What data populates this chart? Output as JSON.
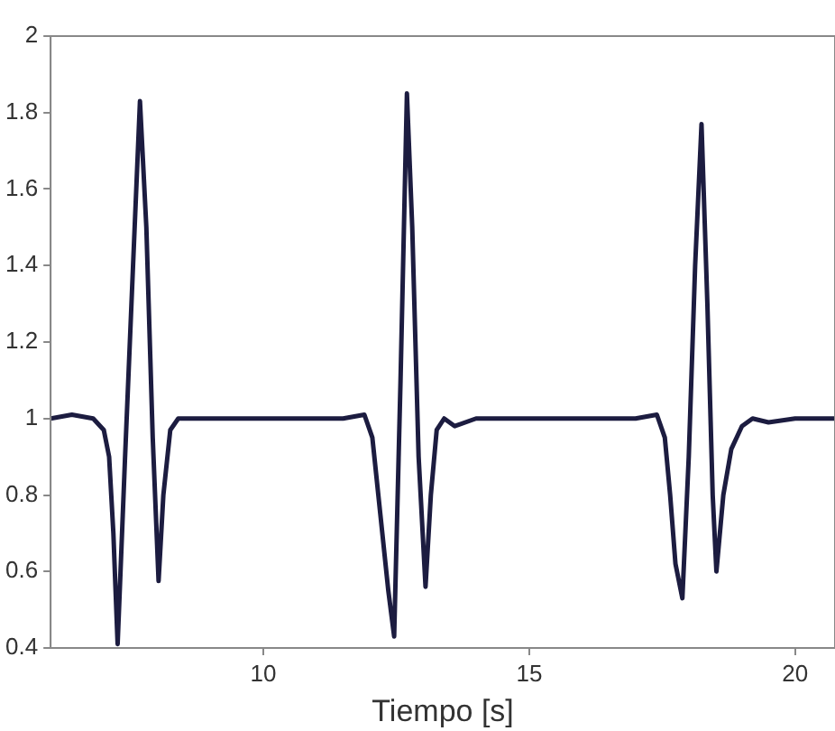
{
  "chart_data": {
    "type": "line",
    "xlabel": "Tiempo [s]",
    "x": [
      6,
      6.4,
      6.8,
      7.0,
      7.1,
      7.18,
      7.26,
      7.4,
      7.55,
      7.68,
      7.8,
      7.92,
      8.03,
      8.12,
      8.25,
      8.4,
      8.6,
      9,
      9.5,
      10,
      10.5,
      11,
      11.5,
      11.9,
      12.05,
      12.2,
      12.35,
      12.46,
      12.58,
      12.7,
      12.8,
      12.92,
      13.05,
      13.15,
      13.26,
      13.4,
      13.6,
      14,
      15,
      16,
      17,
      17.4,
      17.55,
      17.65,
      17.75,
      17.88,
      18.0,
      18.12,
      18.24,
      18.35,
      18.45,
      18.52,
      18.65,
      18.8,
      19.0,
      19.2,
      19.5,
      20,
      20.75
    ],
    "series": [
      {
        "color": "#1c1c40",
        "values": [
          1.0,
          1.01,
          1.0,
          0.97,
          0.9,
          0.7,
          0.41,
          0.9,
          1.4,
          1.83,
          1.5,
          0.95,
          0.575,
          0.8,
          0.97,
          1.0,
          1.0,
          1.0,
          1.0,
          1.0,
          1.0,
          1.0,
          1.0,
          1.01,
          0.95,
          0.75,
          0.55,
          0.43,
          1.1,
          1.85,
          1.5,
          0.9,
          0.56,
          0.8,
          0.97,
          1.0,
          0.98,
          1.0,
          1.0,
          1.0,
          1.0,
          1.01,
          0.95,
          0.8,
          0.62,
          0.53,
          0.9,
          1.4,
          1.77,
          1.3,
          0.8,
          0.6,
          0.8,
          0.92,
          0.98,
          1.0,
          0.99,
          1.0,
          1.0
        ]
      }
    ],
    "xlim": [
      6,
      20.75
    ],
    "xticks": [
      10,
      15,
      20
    ],
    "ylim": [
      0.4,
      2
    ],
    "yticks": [
      0.4,
      0.6,
      0.8,
      1,
      1.2,
      1.4,
      1.6,
      1.8,
      2
    ],
    "grid": false,
    "legend": false,
    "marker": "none",
    "line_style": "solid"
  }
}
